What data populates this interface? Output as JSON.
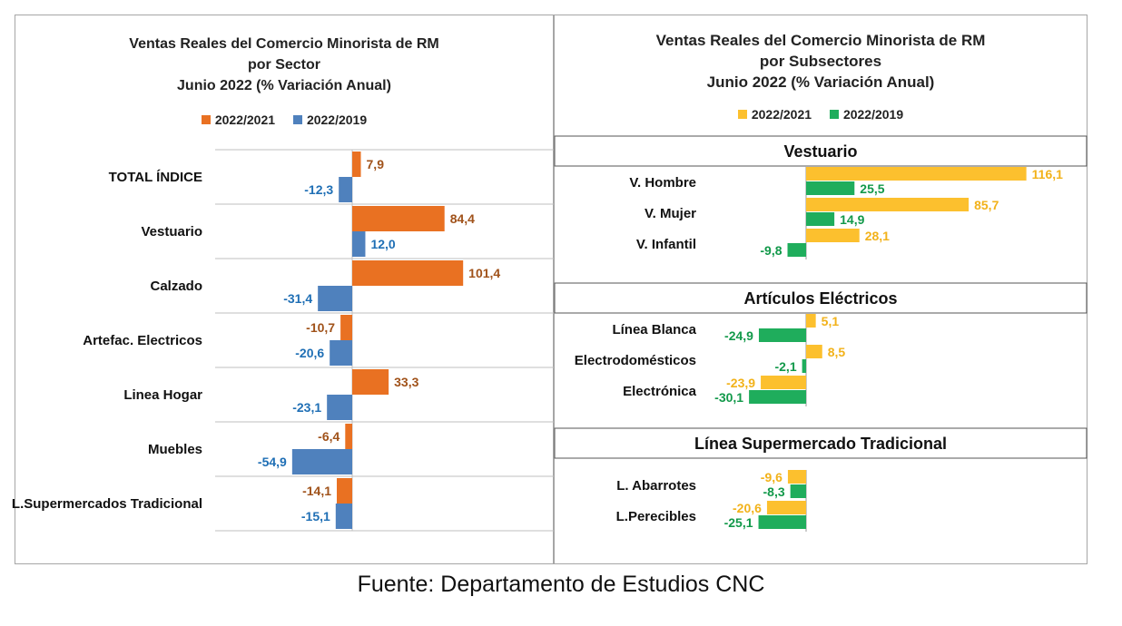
{
  "colors": {
    "orange": "#e97122",
    "blue": "#4f81bd",
    "orange_label": "#a0521a",
    "blue_label": "#1f6fb5",
    "yellow": "#fcc02e",
    "green": "#1fad5c",
    "yellow_label": "#f2b21a",
    "green_label": "#12994a",
    "grid": "#bfbfbf"
  },
  "source": "Fuente: Departamento de Estudios CNC",
  "chart_data": [
    {
      "type": "bar",
      "orientation": "horizontal",
      "title_lines": [
        "Ventas Reales del Comercio Minorista de RM",
        "por Sector",
        "Junio 2022 (% Variación Anual)"
      ],
      "legend": [
        "2022/2021",
        "2022/2019"
      ],
      "legend_position": "top",
      "categories": [
        "TOTAL ÍNDICE",
        "Vestuario",
        "Calzado",
        "Artefac. Electricos",
        "Linea Hogar",
        "Muebles",
        "L.Supermercados Tradicional"
      ],
      "series": [
        {
          "name": "2022/2021",
          "values": [
            7.9,
            84.4,
            101.4,
            -10.7,
            33.3,
            -6.4,
            -14.1
          ]
        },
        {
          "name": "2022/2019",
          "values": [
            -12.3,
            12.0,
            -31.4,
            -20.6,
            -23.1,
            -54.9,
            -15.1
          ]
        }
      ],
      "value_labels": [
        [
          "7,9",
          "84,4",
          "101,4",
          "-10,7",
          "33,3",
          "-6,4",
          "-14,1"
        ],
        [
          "-12,3",
          "12,0",
          "-31,4",
          "-20,6",
          "-23,1",
          "-54,9",
          "-15,1"
        ]
      ],
      "grid": "horizontal"
    },
    {
      "type": "bar",
      "orientation": "horizontal",
      "title_lines": [
        "Ventas Reales del Comercio Minorista de RM",
        "por Subsectores",
        "Junio 2022 (% Variación Anual)"
      ],
      "legend": [
        "2022/2021",
        "2022/2019"
      ],
      "legend_position": "top",
      "groups": [
        {
          "name": "Vestuario",
          "categories": [
            "V. Hombre",
            "V. Mujer",
            "V. Infantil"
          ],
          "series": [
            {
              "name": "2022/2021",
              "values": [
                116.1,
                85.7,
                28.1
              ],
              "labels": [
                "116,1",
                "85,7",
                "28,1"
              ]
            },
            {
              "name": "2022/2019",
              "values": [
                25.5,
                14.9,
                -9.8
              ],
              "labels": [
                "25,5",
                "14,9",
                "-9,8"
              ]
            }
          ]
        },
        {
          "name": "Artículos Eléctricos",
          "categories": [
            "Línea Blanca",
            "Electrodomésticos",
            "Electrónica"
          ],
          "series": [
            {
              "name": "2022/2021",
              "values": [
                5.1,
                8.5,
                -23.9
              ],
              "labels": [
                "5,1",
                "8,5",
                "-23,9"
              ]
            },
            {
              "name": "2022/2019",
              "values": [
                -24.9,
                -2.1,
                -30.1
              ],
              "labels": [
                "-24,9",
                "-2,1",
                "-30,1"
              ]
            }
          ]
        },
        {
          "name": "Línea Supermercado Tradicional",
          "categories": [
            "L. Abarrotes",
            "L.Perecibles"
          ],
          "series": [
            {
              "name": "2022/2021",
              "values": [
                -9.6,
                -20.6
              ],
              "labels": [
                "-9,6",
                "-20,6"
              ]
            },
            {
              "name": "2022/2019",
              "values": [
                -8.3,
                -25.1
              ],
              "labels": [
                "-8,3",
                "-25,1"
              ]
            }
          ]
        }
      ]
    }
  ]
}
